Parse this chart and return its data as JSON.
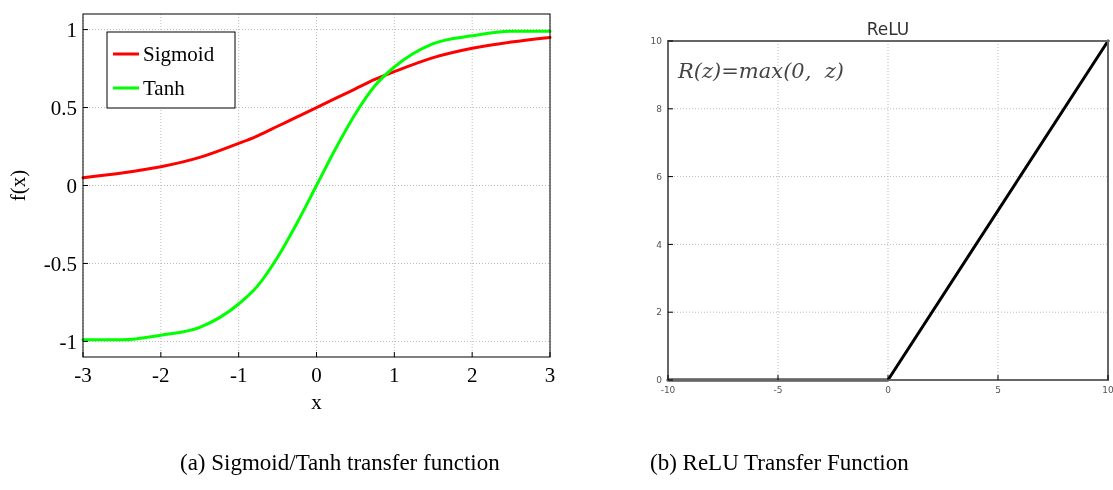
{
  "chart_data": [
    {
      "type": "line",
      "xlabel": "x",
      "ylabel": "f(x)",
      "x": [
        -3,
        -2.5,
        -2,
        -1.5,
        -1,
        -0.75,
        -0.5,
        -0.25,
        0,
        0.25,
        0.5,
        0.75,
        1,
        1.5,
        2,
        2.5,
        3
      ],
      "series": [
        {
          "name": "Sigmoid",
          "color": "#ff0000",
          "values": [
            0.05,
            0.08,
            0.12,
            0.18,
            0.27,
            0.32,
            0.38,
            0.44,
            0.5,
            0.56,
            0.62,
            0.68,
            0.73,
            0.82,
            0.88,
            0.92,
            0.95
          ]
        },
        {
          "name": "Tanh",
          "color": "#00ff00",
          "values": [
            -0.99,
            -0.99,
            -0.96,
            -0.91,
            -0.76,
            -0.64,
            -0.46,
            -0.24,
            0,
            0.24,
            0.46,
            0.64,
            0.76,
            0.91,
            0.96,
            0.99,
            0.99
          ]
        }
      ],
      "xlim": [
        -3,
        3
      ],
      "xticks": [
        -3,
        -2,
        -1,
        0,
        1,
        2,
        3
      ],
      "ylim": [
        -1.1,
        1.1
      ],
      "yticks": [
        -1,
        -0.5,
        0,
        0.5,
        1
      ],
      "grid": true,
      "legend": "top left",
      "line_style": "solid",
      "marker": "none",
      "annotations": [
        "(a)  Sigmoid/Tanh transfer function"
      ]
    },
    {
      "type": "line",
      "title": "ReLU",
      "x": [
        -10,
        0,
        10
      ],
      "series": [
        {
          "color": "#000000",
          "values": [
            0,
            0,
            10
          ]
        }
      ],
      "xlim": [
        -10,
        10
      ],
      "xticks": [
        -10,
        -5,
        0,
        5,
        10
      ],
      "ylim": [
        0,
        10
      ],
      "yticks": [
        0,
        2,
        4,
        6,
        8,
        10
      ],
      "grid": true,
      "legend": false,
      "line_style": "solid",
      "marker": "none",
      "annotations": [
        "R(z)=max(0,  z)",
        "(b) ReLU Transfer Function"
      ]
    }
  ]
}
